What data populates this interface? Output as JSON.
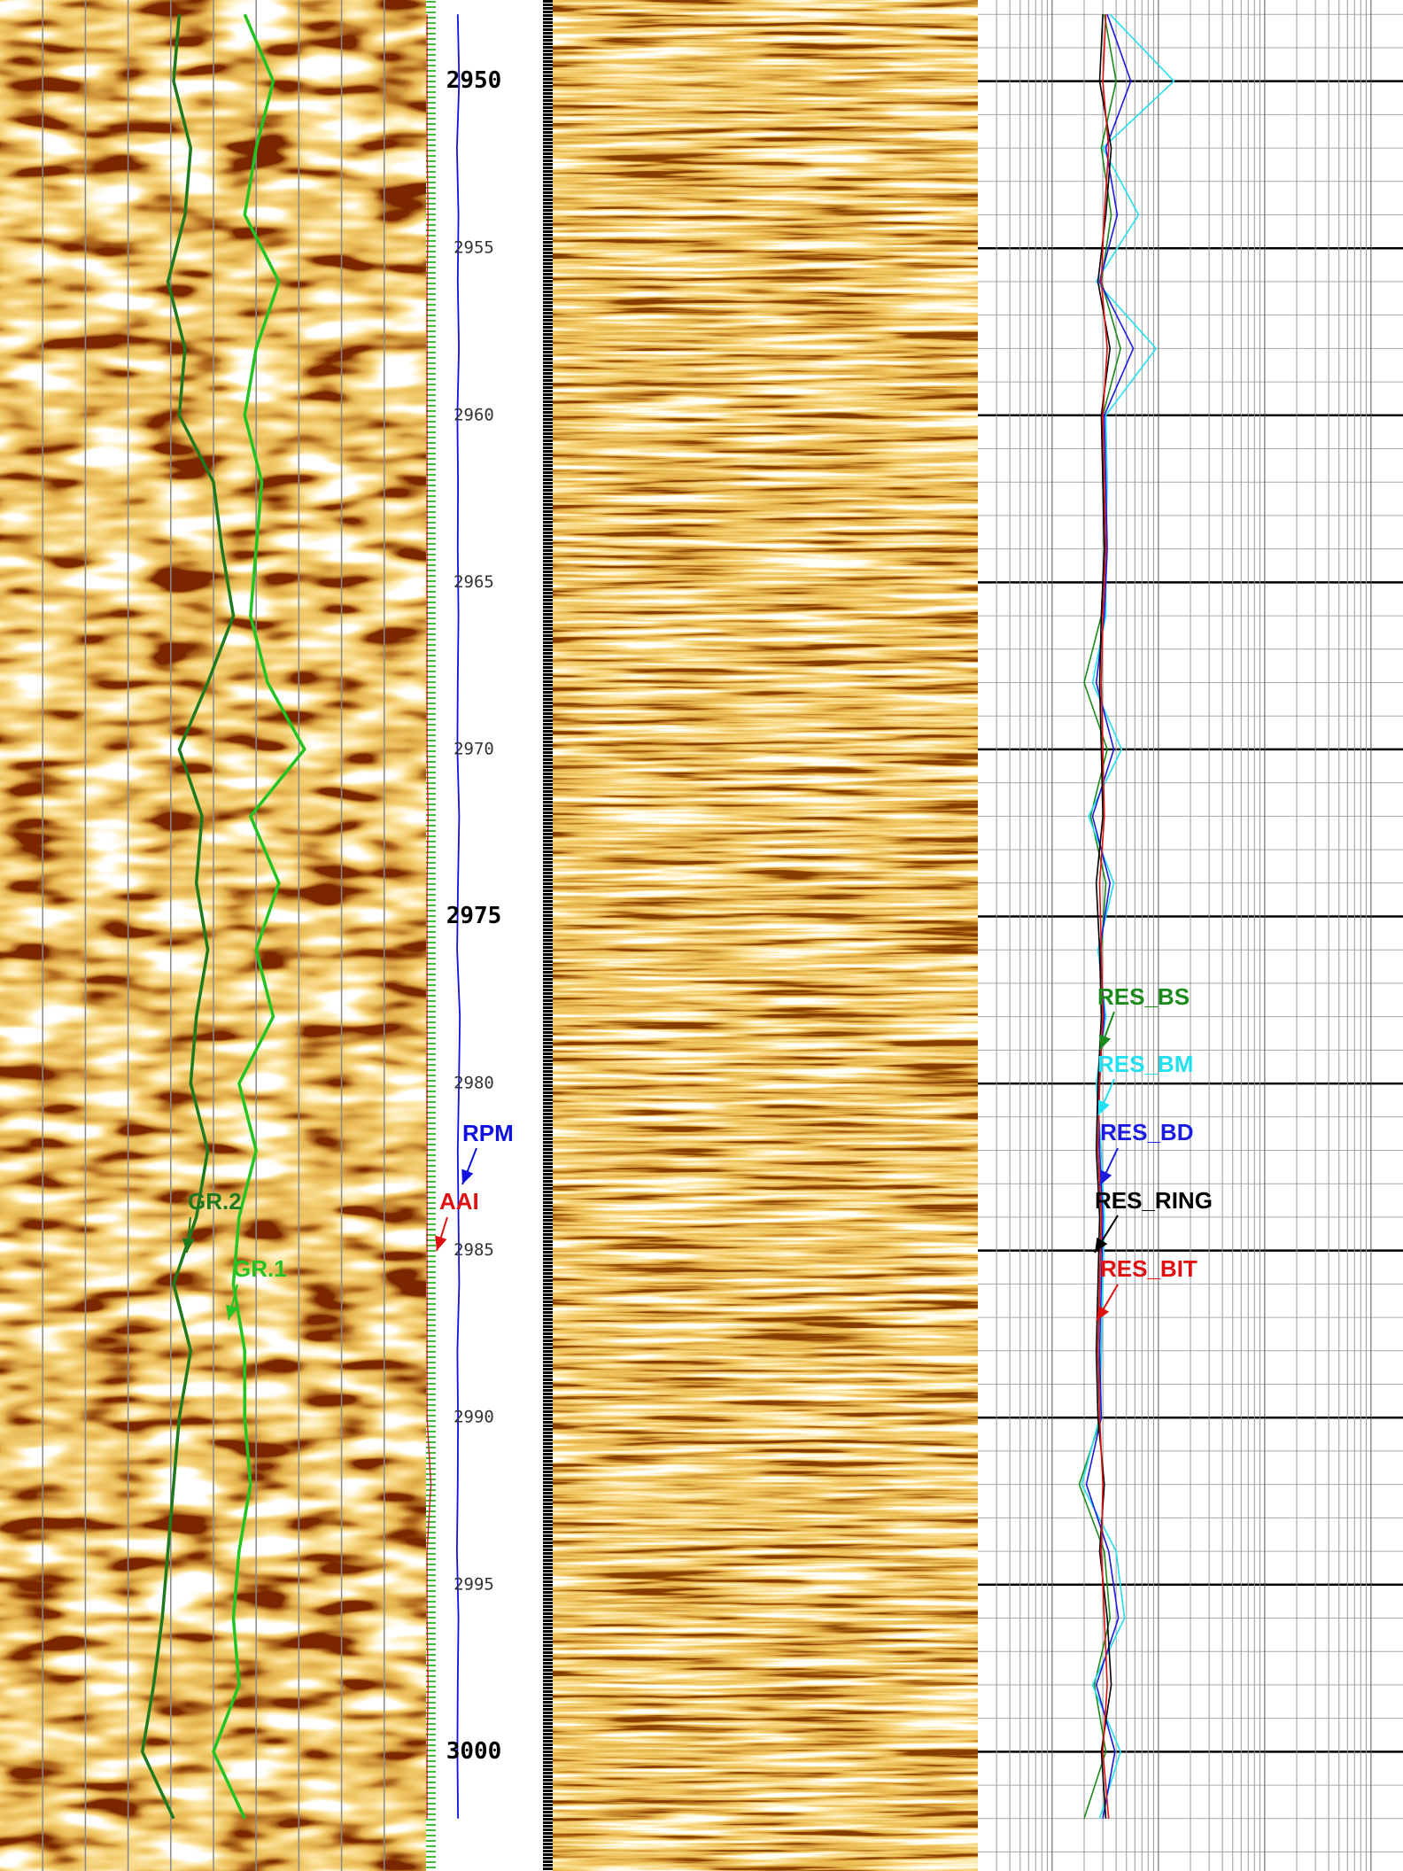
{
  "chart_data": [
    {
      "type": "line",
      "orientation": "vertical",
      "ylim": [
        2947.57,
        3003.57
      ],
      "xlim": [
        0,
        150
      ],
      "grid": true,
      "background": "image",
      "y": [
        2948,
        2950,
        2952,
        2954,
        2956,
        2958,
        2960,
        2962,
        2964,
        2966,
        2968,
        2970,
        2972,
        2974,
        2976,
        2978,
        2980,
        2982,
        2984,
        2986,
        2988,
        2990,
        2992,
        2994,
        2996,
        2998,
        3000,
        3002
      ],
      "series": [
        {
          "name": "GR.2",
          "color": "#1f7a1f",
          "values": [
            63,
            61,
            67,
            65,
            59,
            65,
            63,
            75,
            78,
            82,
            73,
            63,
            71,
            69,
            73,
            69,
            67,
            73,
            69,
            61,
            67,
            63,
            61,
            59,
            57,
            54,
            50,
            61
          ]
        },
        {
          "name": "GR.1",
          "color": "#22c322",
          "values": [
            86,
            96,
            90,
            86,
            98,
            90,
            86,
            92,
            90,
            88,
            94,
            107,
            88,
            98,
            90,
            96,
            84,
            90,
            84,
            82,
            86,
            86,
            88,
            84,
            82,
            84,
            75,
            86
          ]
        }
      ]
    },
    {
      "type": "depth",
      "ylim": [
        2947.57,
        3003.57
      ],
      "yticks": [
        2950,
        2955,
        2960,
        2965,
        2970,
        2975,
        2980,
        2985,
        2990,
        2995,
        3000
      ]
    },
    {
      "type": "line",
      "orientation": "vertical",
      "ylim": [
        2947.57,
        3003.57
      ],
      "y": [
        2948,
        2950,
        2952,
        2954,
        2956,
        2958,
        2960,
        2962,
        2964,
        2966,
        2968,
        2970,
        2972,
        2974,
        2976,
        2978,
        2980,
        2982,
        2984,
        2986,
        2988,
        2990,
        2992,
        2994,
        2996,
        2998,
        3000,
        3002
      ],
      "series": [
        {
          "name": "AAI",
          "color": "#e01010",
          "xlim": [
            0,
            10
          ],
          "values": [
            1,
            1,
            1,
            2,
            1,
            1,
            1,
            1,
            1,
            1,
            1,
            1,
            2,
            1,
            1,
            1,
            1,
            1,
            1,
            1,
            1,
            1,
            5,
            1,
            1,
            2,
            1,
            1
          ]
        },
        {
          "name": "RPM",
          "color": "#1010e0",
          "xlim": [
            0,
            200
          ],
          "values": [
            150,
            160,
            145,
            155,
            150,
            158,
            148,
            152,
            150,
            155,
            150,
            148,
            160,
            152,
            146,
            165,
            158,
            150,
            155,
            160,
            148,
            152,
            150,
            145,
            155,
            150,
            148,
            152
          ]
        }
      ]
    },
    {
      "type": "line",
      "orientation": "vertical",
      "log_scale": true,
      "grid": true,
      "ylim": [
        2947.57,
        3003.57
      ],
      "xlim": [
        0.2,
        2000
      ],
      "y": [
        2948,
        2950,
        2952,
        2954,
        2956,
        2958,
        2960,
        2962,
        2964,
        2966,
        2968,
        2970,
        2972,
        2974,
        2976,
        2978,
        2980,
        2982,
        2984,
        2986,
        2988,
        2990,
        2992,
        2994,
        2996,
        2998,
        3000,
        3002
      ],
      "series": [
        {
          "name": "RES_BS",
          "color": "#1a8a1a",
          "values": [
            3.1,
            4.0,
            2.9,
            3.6,
            2.9,
            4.4,
            3.0,
            3.0,
            3.1,
            2.9,
            2.0,
            3.3,
            2.3,
            3.2,
            2.9,
            3.0,
            2.8,
            2.7,
            2.9,
            2.8,
            2.7,
            2.9,
            1.8,
            3.1,
            3.5,
            2.5,
            3.2,
            2.0
          ]
        },
        {
          "name": "RES_BM",
          "color": "#22e0f0",
          "values": [
            3.5,
            14,
            3.0,
            6.5,
            2.6,
            9.5,
            3.2,
            3.3,
            3.2,
            3.2,
            2.4,
            4.5,
            2.2,
            3.8,
            2.7,
            3.2,
            2.6,
            2.9,
            3.1,
            3.0,
            2.9,
            2.8,
            1.9,
            4.0,
            4.8,
            2.4,
            4.4,
            2.8
          ]
        },
        {
          "name": "RES_BD",
          "color": "#1a1ae0",
          "values": [
            3.3,
            5.5,
            3.2,
            4.1,
            2.8,
            5.8,
            3.1,
            3.2,
            3.3,
            3.1,
            2.6,
            3.8,
            2.4,
            3.5,
            2.8,
            3.1,
            2.7,
            2.8,
            3.0,
            2.9,
            2.8,
            2.9,
            2.1,
            3.4,
            4.2,
            2.6,
            3.9,
            3.0
          ]
        },
        {
          "name": "RES_RING",
          "color": "#000000",
          "values": [
            3.0,
            2.8,
            3.6,
            3.2,
            2.7,
            3.5,
            2.9,
            3.0,
            3.1,
            2.9,
            2.8,
            2.9,
            3.0,
            2.6,
            2.8,
            2.9,
            2.7,
            2.6,
            2.8,
            2.7,
            2.6,
            2.7,
            3.1,
            2.8,
            3.3,
            3.6,
            2.9,
            3.2
          ]
        },
        {
          "name": "RES_BIT",
          "color": "#e01010",
          "values": [
            3.2,
            3.0,
            3.4,
            3.1,
            2.9,
            3.3,
            3.0,
            3.1,
            3.2,
            3.0,
            2.9,
            3.0,
            3.1,
            2.8,
            2.9,
            3.0,
            2.8,
            2.7,
            2.9,
            2.8,
            2.7,
            2.8,
            3.0,
            2.9,
            3.1,
            3.3,
            3.0,
            3.4
          ]
        }
      ]
    }
  ]
}
